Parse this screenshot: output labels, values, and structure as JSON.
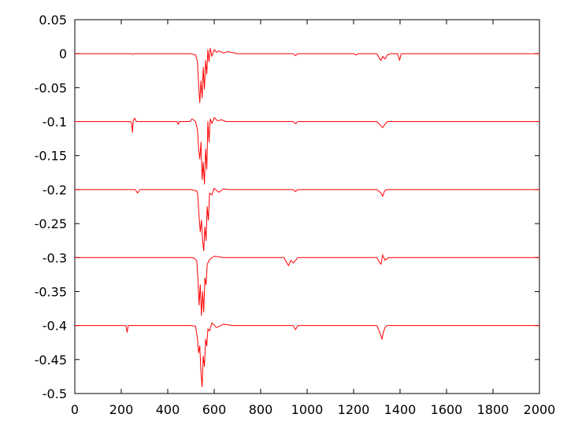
{
  "chart_data": {
    "type": "line",
    "title": "",
    "xlabel": "",
    "ylabel": "",
    "xlim": [
      0,
      2000
    ],
    "ylim": [
      -0.5,
      0.05
    ],
    "grid": false,
    "legend": "none",
    "x_ticks": [
      "0",
      "200",
      "400",
      "600",
      "800",
      "1000",
      "1200",
      "1400",
      "1600",
      "1800",
      "2000"
    ],
    "y_ticks": [
      "0.05",
      "0",
      "-0.05",
      "-0.1",
      "-0.15",
      "-0.2",
      "-0.25",
      "-0.3",
      "-0.35",
      "-0.4",
      "-0.45",
      "-0.5"
    ],
    "line_color": "#ff0000",
    "series": [
      {
        "baseline": 0,
        "points": [
          [
            0,
            0
          ],
          [
            240,
            0
          ],
          [
            250,
            -0.001
          ],
          [
            260,
            0
          ],
          [
            500,
            0
          ],
          [
            520,
            -0.002
          ],
          [
            528,
            -0.012
          ],
          [
            533,
            -0.045
          ],
          [
            538,
            -0.072
          ],
          [
            543,
            -0.04
          ],
          [
            548,
            -0.065
          ],
          [
            553,
            -0.02
          ],
          [
            558,
            -0.052
          ],
          [
            563,
            -0.01
          ],
          [
            568,
            -0.03
          ],
          [
            573,
            0.006
          ],
          [
            578,
            -0.012
          ],
          [
            583,
            0.008
          ],
          [
            590,
            -0.004
          ],
          [
            600,
            0.006
          ],
          [
            610,
            0.002
          ],
          [
            620,
            0.004
          ],
          [
            640,
            0.001
          ],
          [
            660,
            0.003
          ],
          [
            700,
            0
          ],
          [
            940,
            0
          ],
          [
            950,
            -0.003
          ],
          [
            960,
            0
          ],
          [
            1200,
            0
          ],
          [
            1210,
            -0.002
          ],
          [
            1220,
            0
          ],
          [
            1300,
            0
          ],
          [
            1310,
            -0.006
          ],
          [
            1318,
            -0.01
          ],
          [
            1325,
            -0.004
          ],
          [
            1335,
            -0.008
          ],
          [
            1345,
            -0.002
          ],
          [
            1360,
            0
          ],
          [
            1390,
            0
          ],
          [
            1398,
            -0.01
          ],
          [
            1405,
            0
          ],
          [
            1420,
            0
          ],
          [
            2000,
            0
          ]
        ]
      },
      {
        "baseline": -0.1,
        "points": [
          [
            0,
            -0.1
          ],
          [
            240,
            -0.1
          ],
          [
            245,
            -0.103
          ],
          [
            248,
            -0.116
          ],
          [
            252,
            -0.098
          ],
          [
            258,
            -0.095
          ],
          [
            265,
            -0.1
          ],
          [
            300,
            -0.1
          ],
          [
            440,
            -0.1
          ],
          [
            445,
            -0.104
          ],
          [
            450,
            -0.1
          ],
          [
            495,
            -0.1
          ],
          [
            505,
            -0.096
          ],
          [
            520,
            -0.1
          ],
          [
            528,
            -0.112
          ],
          [
            533,
            -0.14
          ],
          [
            538,
            -0.155
          ],
          [
            543,
            -0.13
          ],
          [
            548,
            -0.185
          ],
          [
            553,
            -0.16
          ],
          [
            558,
            -0.192
          ],
          [
            563,
            -0.14
          ],
          [
            568,
            -0.17
          ],
          [
            573,
            -0.1
          ],
          [
            578,
            -0.13
          ],
          [
            583,
            -0.096
          ],
          [
            590,
            -0.103
          ],
          [
            600,
            -0.094
          ],
          [
            615,
            -0.099
          ],
          [
            630,
            -0.097
          ],
          [
            650,
            -0.1
          ],
          [
            700,
            -0.1
          ],
          [
            940,
            -0.1
          ],
          [
            950,
            -0.103
          ],
          [
            960,
            -0.1
          ],
          [
            1300,
            -0.1
          ],
          [
            1318,
            -0.106
          ],
          [
            1325,
            -0.109
          ],
          [
            1335,
            -0.104
          ],
          [
            1345,
            -0.1
          ],
          [
            2000,
            -0.1
          ]
        ]
      },
      {
        "baseline": -0.2,
        "points": [
          [
            0,
            -0.2
          ],
          [
            260,
            -0.2
          ],
          [
            270,
            -0.205
          ],
          [
            280,
            -0.2
          ],
          [
            500,
            -0.2
          ],
          [
            525,
            -0.202
          ],
          [
            530,
            -0.21
          ],
          [
            535,
            -0.24
          ],
          [
            540,
            -0.262
          ],
          [
            545,
            -0.245
          ],
          [
            550,
            -0.275
          ],
          [
            555,
            -0.29
          ],
          [
            560,
            -0.255
          ],
          [
            565,
            -0.275
          ],
          [
            570,
            -0.225
          ],
          [
            575,
            -0.245
          ],
          [
            580,
            -0.205
          ],
          [
            590,
            -0.208
          ],
          [
            600,
            -0.198
          ],
          [
            620,
            -0.204
          ],
          [
            640,
            -0.199
          ],
          [
            660,
            -0.2
          ],
          [
            940,
            -0.2
          ],
          [
            950,
            -0.203
          ],
          [
            960,
            -0.2
          ],
          [
            1300,
            -0.2
          ],
          [
            1318,
            -0.205
          ],
          [
            1325,
            -0.21
          ],
          [
            1332,
            -0.203
          ],
          [
            1340,
            -0.2
          ],
          [
            2000,
            -0.2
          ]
        ]
      },
      {
        "baseline": -0.3,
        "points": [
          [
            0,
            -0.3
          ],
          [
            500,
            -0.3
          ],
          [
            515,
            -0.301
          ],
          [
            525,
            -0.305
          ],
          [
            530,
            -0.33
          ],
          [
            535,
            -0.37
          ],
          [
            540,
            -0.34
          ],
          [
            545,
            -0.385
          ],
          [
            550,
            -0.35
          ],
          [
            555,
            -0.38
          ],
          [
            560,
            -0.33
          ],
          [
            565,
            -0.34
          ],
          [
            570,
            -0.31
          ],
          [
            580,
            -0.303
          ],
          [
            600,
            -0.298
          ],
          [
            640,
            -0.3
          ],
          [
            900,
            -0.3
          ],
          [
            910,
            -0.306
          ],
          [
            920,
            -0.312
          ],
          [
            930,
            -0.304
          ],
          [
            940,
            -0.308
          ],
          [
            960,
            -0.3
          ],
          [
            1300,
            -0.3
          ],
          [
            1310,
            -0.306
          ],
          [
            1318,
            -0.31
          ],
          [
            1325,
            -0.296
          ],
          [
            1335,
            -0.304
          ],
          [
            1350,
            -0.3
          ],
          [
            2000,
            -0.3
          ]
        ]
      },
      {
        "baseline": -0.4,
        "points": [
          [
            0,
            -0.4
          ],
          [
            220,
            -0.4
          ],
          [
            225,
            -0.41
          ],
          [
            230,
            -0.4
          ],
          [
            500,
            -0.4
          ],
          [
            520,
            -0.401
          ],
          [
            528,
            -0.42
          ],
          [
            533,
            -0.44
          ],
          [
            538,
            -0.43
          ],
          [
            543,
            -0.47
          ],
          [
            548,
            -0.49
          ],
          [
            553,
            -0.445
          ],
          [
            558,
            -0.46
          ],
          [
            563,
            -0.42
          ],
          [
            568,
            -0.43
          ],
          [
            573,
            -0.405
          ],
          [
            580,
            -0.408
          ],
          [
            590,
            -0.396
          ],
          [
            610,
            -0.403
          ],
          [
            640,
            -0.398
          ],
          [
            680,
            -0.4
          ],
          [
            940,
            -0.4
          ],
          [
            950,
            -0.406
          ],
          [
            960,
            -0.4
          ],
          [
            1300,
            -0.4
          ],
          [
            1315,
            -0.412
          ],
          [
            1322,
            -0.42
          ],
          [
            1328,
            -0.41
          ],
          [
            1335,
            -0.403
          ],
          [
            1345,
            -0.4
          ],
          [
            2000,
            -0.4
          ]
        ]
      }
    ]
  }
}
